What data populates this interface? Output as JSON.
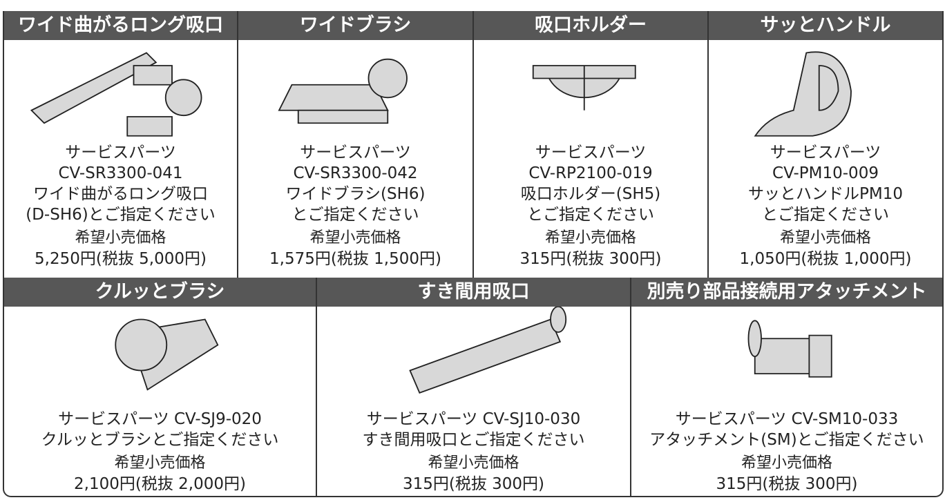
{
  "rows": [
    {
      "items": [
        {
          "title": "ワイド曲がるロング吸口",
          "lines": [
            "サービスパーツ",
            "CV-SR3300-041",
            "ワイド曲がるロング吸口",
            "(D-SH6)とご指定ください"
          ],
          "price_heading": "希望小売価格",
          "price": "5,250円(税抜 5,000円)"
        },
        {
          "title": "ワイドブラシ",
          "lines": [
            "サービスパーツ",
            "CV-SR3300-042",
            "ワイドブラシ(SH6)",
            "とご指定ください"
          ],
          "price_heading": "希望小売価格",
          "price": "1,575円(税抜 1,500円)"
        },
        {
          "title": "吸口ホルダー",
          "lines": [
            "サービスパーツ",
            "CV-RP2100-019",
            "吸口ホルダー(SH5)",
            "とご指定ください"
          ],
          "price_heading": "希望小売価格",
          "price": "315円(税抜 300円)"
        },
        {
          "title": "サッとハンドル",
          "lines": [
            "サービスパーツ",
            "CV-PM10-009",
            "サッとハンドルPM10",
            "とご指定ください"
          ],
          "price_heading": "希望小売価格",
          "price": "1,050円(税抜 1,000円)"
        }
      ]
    },
    {
      "items": [
        {
          "title": "クルッとブラシ",
          "lines": [
            "サービスパーツ CV-SJ9-020",
            "クルッとブラシとご指定ください"
          ],
          "price_heading": "希望小売価格",
          "price": "2,100円(税抜 2,000円)"
        },
        {
          "title": "すき間用吸口",
          "lines": [
            "サービスパーツ CV-SJ10-030",
            "すき間用吸口とご指定ください"
          ],
          "price_heading": "希望小売価格",
          "price": "315円(税抜 300円)"
        },
        {
          "title": "別売り部品接続用アタッチメント",
          "lines": [
            "サービスパーツ CV-SM10-033",
            "アタッチメント(SM)とご指定ください"
          ],
          "price_heading": "希望小売価格",
          "price": "315円(税抜 300円)"
        }
      ]
    }
  ]
}
